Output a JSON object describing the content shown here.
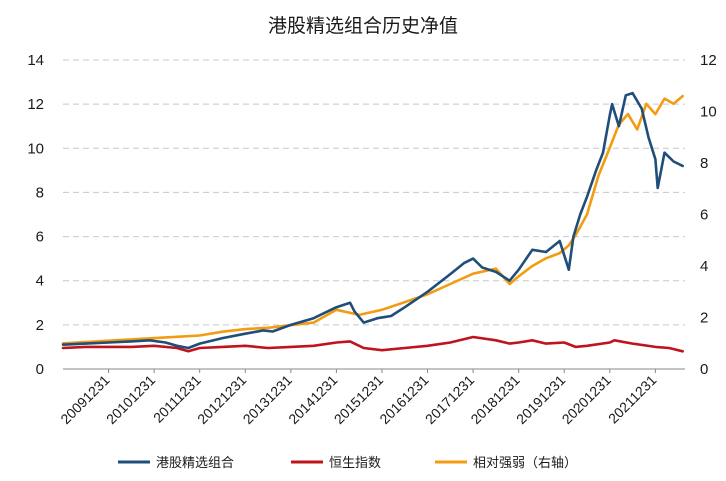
{
  "chart_data": {
    "type": "line",
    "title": "港股精选组合历史净值",
    "xlabel": "",
    "ylabel": "",
    "ylim": [
      0,
      14
    ],
    "y2lim": [
      0,
      12
    ],
    "yticks": [
      "0",
      "2",
      "4",
      "6",
      "8",
      "10",
      "12",
      "14"
    ],
    "y2ticks": [
      "0",
      "2",
      "4",
      "6",
      "8",
      "10",
      "12"
    ],
    "xlim": [
      2009.0,
      2022.65
    ],
    "xticks": [
      "20091231",
      "20101231",
      "20111231",
      "20121231",
      "20131231",
      "20141231",
      "20151231",
      "20161231",
      "20171231",
      "20181231",
      "20191231",
      "20201231",
      "20211231"
    ],
    "grid": "horizontal-dashed",
    "legend": "bottom",
    "colors": {
      "portfolio": "#1f4e79",
      "hsi": "#c0141c",
      "relative": "#f39c12"
    },
    "series": [
      {
        "name": "港股精选组合",
        "axis": "left",
        "x": [
          2009.0,
          2009.5,
          2010.0,
          2010.5,
          2010.9,
          2011.25,
          2011.5,
          2011.75,
          2012.0,
          2012.5,
          2013.0,
          2013.4,
          2013.6,
          2014.0,
          2014.5,
          2015.0,
          2015.3,
          2015.4,
          2015.6,
          2015.9,
          2016.2,
          2016.5,
          2017.0,
          2017.5,
          2017.8,
          2018.0,
          2018.2,
          2018.5,
          2018.8,
          2019.0,
          2019.3,
          2019.6,
          2019.9,
          2020.1,
          2020.2,
          2020.35,
          2020.5,
          2020.7,
          2020.85,
          2021.0,
          2021.05,
          2021.2,
          2021.35,
          2021.5,
          2021.7,
          2021.85,
          2022.0,
          2022.05,
          2022.2,
          2022.4,
          2022.6
        ],
        "y": [
          1.1,
          1.15,
          1.2,
          1.25,
          1.3,
          1.2,
          1.05,
          0.95,
          1.15,
          1.4,
          1.6,
          1.75,
          1.7,
          2.0,
          2.3,
          2.8,
          3.0,
          2.6,
          2.1,
          2.3,
          2.4,
          2.8,
          3.5,
          4.3,
          4.8,
          5.0,
          4.6,
          4.4,
          4.0,
          4.5,
          5.4,
          5.3,
          5.8,
          4.5,
          6.0,
          7.0,
          7.8,
          9.0,
          9.8,
          11.5,
          12.0,
          11.0,
          12.4,
          12.5,
          11.8,
          10.5,
          9.5,
          8.2,
          9.8,
          9.4,
          9.2
        ]
      },
      {
        "name": "恒生指数",
        "axis": "left",
        "x": [
          2009.0,
          2009.5,
          2010.0,
          2010.5,
          2011.0,
          2011.5,
          2011.75,
          2012.0,
          2012.5,
          2013.0,
          2013.5,
          2014.0,
          2014.5,
          2015.0,
          2015.3,
          2015.6,
          2016.0,
          2016.5,
          2017.0,
          2017.5,
          2018.0,
          2018.5,
          2018.8,
          2019.0,
          2019.3,
          2019.6,
          2020.0,
          2020.25,
          2020.5,
          2021.0,
          2021.1,
          2021.5,
          2022.0,
          2022.3,
          2022.6
        ],
        "y": [
          0.95,
          1.0,
          1.0,
          1.0,
          1.05,
          0.95,
          0.8,
          0.95,
          1.0,
          1.05,
          0.95,
          1.0,
          1.05,
          1.2,
          1.25,
          0.95,
          0.85,
          0.95,
          1.05,
          1.2,
          1.45,
          1.3,
          1.15,
          1.2,
          1.3,
          1.15,
          1.2,
          1.0,
          1.05,
          1.2,
          1.3,
          1.15,
          1.0,
          0.95,
          0.8
        ]
      },
      {
        "name": "相对强弱（右轴）",
        "axis": "right",
        "x": [
          2009.0,
          2009.5,
          2010.0,
          2010.5,
          2011.0,
          2011.5,
          2012.0,
          2012.5,
          2013.0,
          2013.5,
          2014.0,
          2014.5,
          2015.0,
          2015.5,
          2016.0,
          2016.5,
          2017.0,
          2017.5,
          2018.0,
          2018.5,
          2018.8,
          2019.0,
          2019.3,
          2019.6,
          2019.9,
          2020.1,
          2020.25,
          2020.5,
          2020.75,
          2021.0,
          2021.2,
          2021.4,
          2021.6,
          2021.8,
          2022.0,
          2022.2,
          2022.4,
          2022.6
        ],
        "y": [
          1.0,
          1.05,
          1.1,
          1.15,
          1.2,
          1.25,
          1.3,
          1.45,
          1.55,
          1.6,
          1.7,
          1.8,
          2.3,
          2.1,
          2.3,
          2.6,
          2.9,
          3.3,
          3.7,
          3.9,
          3.3,
          3.6,
          4.0,
          4.3,
          4.5,
          4.8,
          5.2,
          6.0,
          7.5,
          8.6,
          9.5,
          9.9,
          9.3,
          10.3,
          9.9,
          10.5,
          10.3,
          10.6
        ]
      }
    ]
  }
}
